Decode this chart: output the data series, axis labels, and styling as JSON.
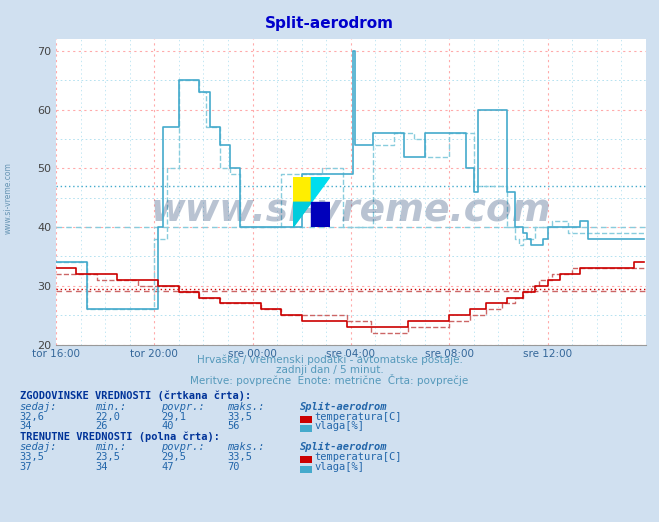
{
  "title": "Split-aerodrom",
  "title_color": "#0000cc",
  "bg_color": "#d0e0f0",
  "plot_bg_color": "#ffffff",
  "xlabel_texts": [
    "tor 16:00",
    "tor 20:00",
    "sre 00:00",
    "sre 04:00",
    "sre 08:00",
    "sre 12:00"
  ],
  "ylim": [
    20,
    72
  ],
  "xlim": [
    0,
    288
  ],
  "watermark": "www.si-vreme.com",
  "subtitle1": "Hrvaška / vremenski podatki - avtomatske postaje.",
  "subtitle2": "zadnji dan / 5 minut.",
  "subtitle3": "Meritve: povprečne  Enote: metrične  Črta: povprečje",
  "footer_color": "#5599bb",
  "temp_color_solid": "#cc0000",
  "temp_color_dashed": "#cc6666",
  "vlaga_color_solid": "#44aacc",
  "vlaga_color_dashed": "#88ccdd",
  "temp_avg_hist": 29.1,
  "temp_avg_curr": 29.5,
  "vlaga_avg_hist": 40,
  "vlaga_avg_curr": 47,
  "note_text1": "ZGODOVINSKE VREDNOSTI (črtkana črta):",
  "note_text2": "TRENUTNE VREDNOSTI (polna črta):",
  "n_points": 288,
  "temp_solid_data": [
    33,
    33,
    33,
    33,
    33,
    33,
    33,
    33,
    33,
    33,
    32,
    32,
    32,
    32,
    32,
    32,
    32,
    32,
    32,
    32,
    32,
    32,
    32,
    32,
    32,
    32,
    32,
    32,
    32,
    32,
    31,
    31,
    31,
    31,
    31,
    31,
    31,
    31,
    31,
    31,
    31,
    31,
    31,
    31,
    31,
    31,
    31,
    31,
    31,
    31,
    30,
    30,
    30,
    30,
    30,
    30,
    30,
    30,
    30,
    30,
    29,
    29,
    29,
    29,
    29,
    29,
    29,
    29,
    29,
    29,
    28,
    28,
    28,
    28,
    28,
    28,
    28,
    28,
    28,
    28,
    27,
    27,
    27,
    27,
    27,
    27,
    27,
    27,
    27,
    27,
    27,
    27,
    27,
    27,
    27,
    27,
    27,
    27,
    27,
    27,
    26,
    26,
    26,
    26,
    26,
    26,
    26,
    26,
    26,
    26,
    25,
    25,
    25,
    25,
    25,
    25,
    25,
    25,
    25,
    25,
    24,
    24,
    24,
    24,
    24,
    24,
    24,
    24,
    24,
    24,
    24,
    24,
    24,
    24,
    24,
    24,
    24,
    24,
    24,
    24,
    24,
    24,
    23,
    23,
    23,
    23,
    23,
    23,
    23,
    23,
    23,
    23,
    23,
    23,
    23,
    23,
    23,
    23,
    23,
    23,
    23,
    23,
    23,
    23,
    23,
    23,
    23,
    23,
    23,
    23,
    23,
    23,
    24,
    24,
    24,
    24,
    24,
    24,
    24,
    24,
    24,
    24,
    24,
    24,
    24,
    24,
    24,
    24,
    24,
    24,
    24,
    24,
    25,
    25,
    25,
    25,
    25,
    25,
    25,
    25,
    25,
    25,
    26,
    26,
    26,
    26,
    26,
    26,
    26,
    26,
    27,
    27,
    27,
    27,
    27,
    27,
    27,
    27,
    27,
    27,
    28,
    28,
    28,
    28,
    28,
    28,
    28,
    28,
    29,
    29,
    29,
    29,
    29,
    29,
    30,
    30,
    30,
    30,
    30,
    30,
    31,
    31,
    31,
    31,
    31,
    31,
    32,
    32,
    32,
    32,
    32,
    32,
    32,
    32,
    32,
    32,
    33,
    33,
    33,
    33,
    33,
    33,
    33,
    33,
    33,
    33,
    33,
    33,
    33,
    33,
    33,
    33,
    33,
    33,
    33,
    33,
    33,
    33,
    33,
    33,
    33,
    33,
    34,
    34,
    34,
    34,
    34,
    34,
    34,
    34
  ],
  "temp_dashed_data": [
    32,
    32,
    32,
    32,
    32,
    32,
    32,
    32,
    32,
    32,
    32,
    32,
    32,
    32,
    32,
    32,
    32,
    32,
    32,
    32,
    31,
    31,
    31,
    31,
    31,
    31,
    31,
    31,
    31,
    31,
    31,
    31,
    31,
    31,
    31,
    31,
    31,
    31,
    31,
    31,
    30,
    30,
    30,
    30,
    30,
    30,
    30,
    30,
    30,
    30,
    30,
    30,
    30,
    30,
    30,
    30,
    30,
    30,
    30,
    30,
    29,
    29,
    29,
    29,
    29,
    29,
    29,
    29,
    29,
    29,
    28,
    28,
    28,
    28,
    28,
    28,
    28,
    28,
    28,
    28,
    27,
    27,
    27,
    27,
    27,
    27,
    27,
    27,
    27,
    27,
    27,
    27,
    27,
    27,
    27,
    27,
    27,
    27,
    27,
    27,
    26,
    26,
    26,
    26,
    26,
    26,
    26,
    26,
    26,
    26,
    25,
    25,
    25,
    25,
    25,
    25,
    25,
    25,
    25,
    25,
    25,
    25,
    25,
    25,
    25,
    25,
    25,
    25,
    25,
    25,
    25,
    25,
    25,
    25,
    25,
    25,
    25,
    25,
    25,
    25,
    25,
    25,
    24,
    24,
    24,
    24,
    24,
    24,
    24,
    24,
    24,
    24,
    24,
    24,
    22,
    22,
    22,
    22,
    22,
    22,
    22,
    22,
    22,
    22,
    22,
    22,
    22,
    22,
    22,
    22,
    22,
    22,
    23,
    23,
    23,
    23,
    23,
    23,
    23,
    23,
    23,
    23,
    23,
    23,
    23,
    23,
    23,
    23,
    23,
    23,
    23,
    23,
    24,
    24,
    24,
    24,
    24,
    24,
    24,
    24,
    24,
    24,
    25,
    25,
    25,
    25,
    25,
    25,
    25,
    25,
    26,
    26,
    26,
    26,
    26,
    26,
    26,
    26,
    27,
    27,
    27,
    27,
    27,
    27,
    28,
    28,
    28,
    28,
    29,
    29,
    29,
    29,
    30,
    30,
    30,
    30,
    31,
    31,
    31,
    31,
    31,
    31,
    32,
    32,
    32,
    32,
    32,
    32,
    32,
    32,
    32,
    32,
    33,
    33,
    33,
    33,
    33,
    33,
    33,
    33,
    33,
    33,
    33,
    33,
    33,
    33,
    33,
    33,
    33,
    33,
    33,
    33,
    33,
    33,
    33,
    33,
    33,
    33,
    33,
    33,
    33,
    33,
    33,
    33,
    33,
    33,
    33,
    33,
    33,
    33
  ],
  "vlaga_solid_data": [
    34,
    34,
    34,
    34,
    34,
    34,
    34,
    34,
    34,
    34,
    34,
    34,
    34,
    34,
    34,
    26,
    26,
    26,
    26,
    26,
    26,
    26,
    26,
    26,
    26,
    26,
    26,
    26,
    26,
    26,
    26,
    26,
    26,
    26,
    26,
    26,
    26,
    26,
    26,
    26,
    26,
    26,
    26,
    26,
    26,
    26,
    26,
    26,
    26,
    26,
    40,
    40,
    57,
    57,
    57,
    57,
    57,
    57,
    57,
    57,
    65,
    65,
    65,
    65,
    65,
    65,
    65,
    65,
    65,
    65,
    63,
    63,
    63,
    63,
    63,
    57,
    57,
    57,
    57,
    57,
    54,
    54,
    54,
    54,
    54,
    50,
    50,
    50,
    50,
    50,
    40,
    40,
    40,
    40,
    40,
    40,
    40,
    40,
    40,
    40,
    40,
    40,
    40,
    40,
    40,
    40,
    40,
    40,
    40,
    40,
    40,
    40,
    40,
    40,
    40,
    40,
    40,
    40,
    40,
    40,
    49,
    49,
    49,
    49,
    49,
    49,
    49,
    49,
    49,
    49,
    49,
    49,
    49,
    49,
    49,
    49,
    49,
    49,
    49,
    49,
    49,
    49,
    49,
    49,
    49,
    70,
    54,
    54,
    54,
    54,
    54,
    54,
    54,
    54,
    54,
    56,
    56,
    56,
    56,
    56,
    56,
    56,
    56,
    56,
    56,
    56,
    56,
    56,
    56,
    56,
    52,
    52,
    52,
    52,
    52,
    52,
    52,
    52,
    52,
    52,
    56,
    56,
    56,
    56,
    56,
    56,
    56,
    56,
    56,
    56,
    56,
    56,
    56,
    56,
    56,
    56,
    56,
    56,
    56,
    56,
    50,
    50,
    50,
    50,
    46,
    46,
    60,
    60,
    60,
    60,
    60,
    60,
    60,
    60,
    60,
    60,
    60,
    60,
    60,
    60,
    46,
    46,
    46,
    46,
    40,
    40,
    40,
    40,
    39,
    39,
    38,
    38,
    37,
    37,
    37,
    37,
    37,
    37,
    38,
    38,
    40,
    40,
    40,
    40,
    40,
    40,
    40,
    40,
    40,
    40,
    40,
    40,
    40,
    40,
    40,
    40,
    41,
    41,
    41,
    41,
    38,
    38,
    38,
    38,
    38,
    38,
    38,
    38,
    38,
    38,
    38,
    38,
    38,
    38,
    38,
    38,
    38,
    38,
    38,
    38,
    38,
    38,
    38,
    38,
    38,
    38,
    38,
    38,
    38,
    38
  ],
  "vlaga_dashed_data": [
    34,
    34,
    34,
    34,
    34,
    34,
    34,
    34,
    34,
    34,
    34,
    34,
    34,
    34,
    34,
    26,
    26,
    26,
    26,
    26,
    26,
    26,
    26,
    26,
    26,
    26,
    26,
    26,
    26,
    26,
    26,
    26,
    26,
    26,
    26,
    26,
    26,
    26,
    26,
    26,
    26,
    26,
    26,
    26,
    26,
    26,
    26,
    26,
    38,
    38,
    38,
    38,
    38,
    38,
    50,
    50,
    50,
    50,
    50,
    50,
    65,
    65,
    65,
    65,
    65,
    65,
    65,
    65,
    65,
    65,
    63,
    63,
    63,
    57,
    57,
    57,
    57,
    57,
    57,
    57,
    50,
    50,
    50,
    50,
    50,
    49,
    49,
    49,
    49,
    49,
    40,
    40,
    40,
    40,
    40,
    40,
    40,
    40,
    40,
    40,
    40,
    40,
    40,
    40,
    40,
    40,
    40,
    40,
    40,
    40,
    49,
    49,
    49,
    49,
    49,
    49,
    49,
    49,
    49,
    49,
    49,
    49,
    49,
    49,
    49,
    49,
    49,
    49,
    49,
    49,
    50,
    50,
    50,
    50,
    50,
    50,
    50,
    50,
    50,
    50,
    40,
    40,
    40,
    40,
    40,
    40,
    40,
    40,
    40,
    40,
    40,
    40,
    40,
    40,
    40,
    54,
    54,
    54,
    54,
    54,
    54,
    54,
    54,
    54,
    54,
    56,
    56,
    56,
    56,
    56,
    56,
    56,
    56,
    56,
    56,
    55,
    55,
    55,
    55,
    55,
    52,
    52,
    52,
    52,
    52,
    52,
    52,
    52,
    52,
    52,
    52,
    52,
    56,
    56,
    56,
    56,
    56,
    56,
    56,
    56,
    56,
    56,
    56,
    56,
    47,
    47,
    47,
    47,
    47,
    47,
    47,
    47,
    47,
    47,
    47,
    47,
    47,
    47,
    47,
    47,
    40,
    40,
    40,
    40,
    38,
    38,
    37,
    37,
    38,
    38,
    38,
    38,
    38,
    38,
    40,
    40,
    40,
    40,
    40,
    40,
    40,
    40,
    41,
    41,
    41,
    41,
    41,
    41,
    41,
    41,
    39,
    39,
    39,
    39,
    39,
    39,
    39,
    39,
    39,
    39,
    39,
    39,
    39,
    39,
    39,
    39,
    39,
    39,
    39,
    39,
    39,
    39,
    39,
    39,
    39,
    39,
    39,
    39,
    39,
    39,
    39,
    39,
    39,
    39,
    39,
    39,
    39,
    39,
    39,
    39
  ]
}
